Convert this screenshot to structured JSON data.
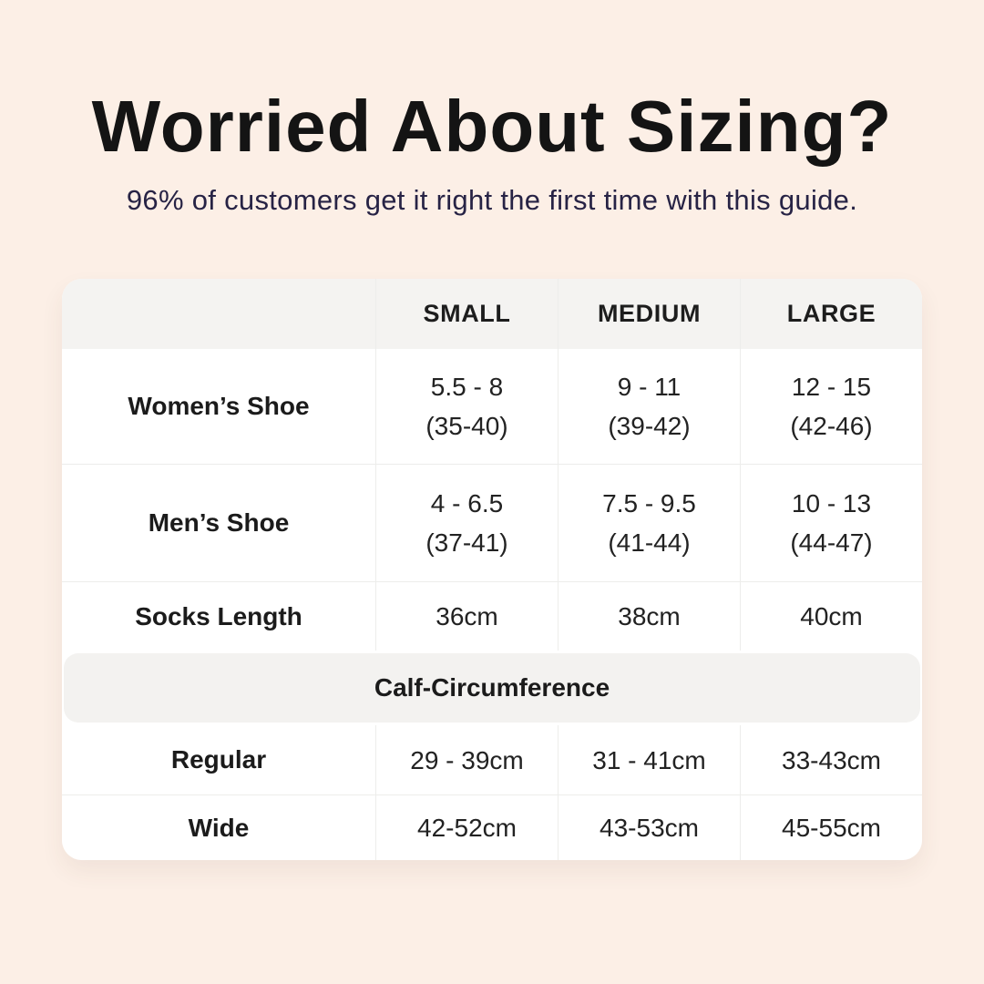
{
  "page": {
    "title": "Worried About Sizing?",
    "subtitle": "96% of customers get it right the first time with this guide.",
    "background_color": "#fcefe6",
    "title_color": "#141414",
    "subtitle_color": "#272345",
    "table_header_bg": "#f4f3f1",
    "divider_color": "#ededeb"
  },
  "table": {
    "columns": [
      "",
      "SMALL",
      "MEDIUM",
      "LARGE"
    ],
    "rows": [
      {
        "label": "Women’s Shoe",
        "values": [
          [
            "5.5 - 8",
            "(35-40)"
          ],
          [
            "9 - 11",
            "(39-42)"
          ],
          [
            "12 - 15",
            "(42-46)"
          ]
        ]
      },
      {
        "label": "Men’s Shoe",
        "values": [
          [
            "4 - 6.5",
            "(37-41)"
          ],
          [
            "7.5 - 9.5",
            "(41-44)"
          ],
          [
            "10 - 13",
            "(44-47)"
          ]
        ]
      },
      {
        "label": "Socks Length",
        "values": [
          [
            "36cm"
          ],
          [
            "38cm"
          ],
          [
            "40cm"
          ]
        ]
      }
    ],
    "section_header": "Calf-Circumference",
    "section_rows": [
      {
        "label": "Regular",
        "values": [
          [
            "29 - 39cm"
          ],
          [
            "31 - 41cm"
          ],
          [
            "33-43cm"
          ]
        ]
      },
      {
        "label": "Wide",
        "values": [
          [
            "42-52cm"
          ],
          [
            "43-53cm"
          ],
          [
            "45-55cm"
          ]
        ]
      }
    ]
  },
  "chart_data": {
    "type": "table",
    "title": "Worried About Sizing?",
    "subtitle": "96% of customers get it right the first time with this guide.",
    "columns": [
      "",
      "SMALL",
      "MEDIUM",
      "LARGE"
    ],
    "rows": [
      [
        "Women’s Shoe",
        "5.5 - 8 (35-40)",
        "9 - 11 (39-42)",
        "12 - 15 (42-46)"
      ],
      [
        "Men’s Shoe",
        "4 - 6.5 (37-41)",
        "7.5 - 9.5 (41-44)",
        "10 - 13 (44-47)"
      ],
      [
        "Socks Length",
        "36cm",
        "38cm",
        "40cm"
      ],
      [
        "Calf-Circumference",
        "",
        "",
        ""
      ],
      [
        "Regular",
        "29 - 39cm",
        "31 - 41cm",
        "33-43cm"
      ],
      [
        "Wide",
        "42-52cm",
        "43-53cm",
        "45-55cm"
      ]
    ]
  }
}
